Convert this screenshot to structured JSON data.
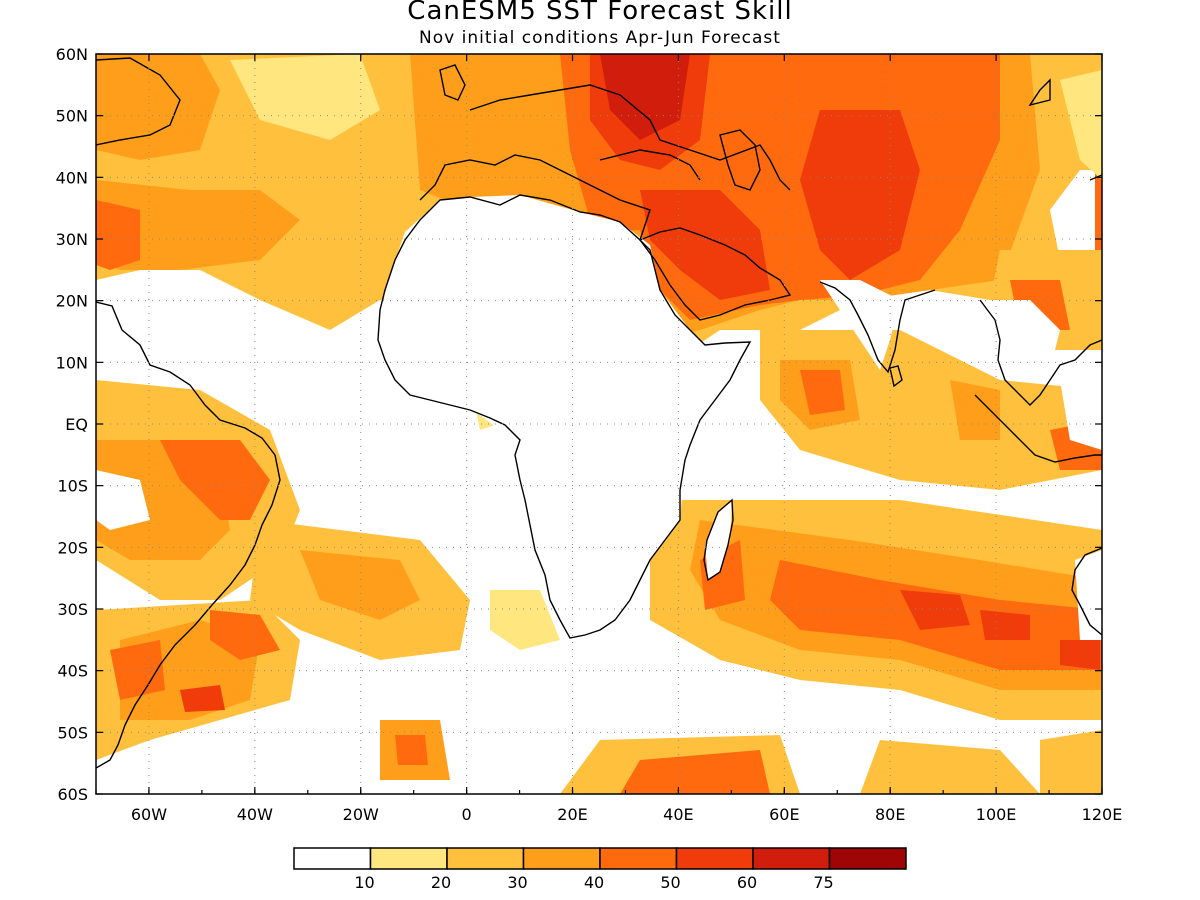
{
  "title": "CanESM5 SST Forecast Skill",
  "subtitle": "Nov initial conditions  Apr-Jun Forecast",
  "map": {
    "lon_range": [
      -70,
      120
    ],
    "lat_range": [
      -60,
      60
    ],
    "lat_labels": [
      "60N",
      "50N",
      "40N",
      "30N",
      "20N",
      "10N",
      "EQ",
      "10S",
      "20S",
      "30S",
      "40S",
      "50S",
      "60S"
    ],
    "lon_labels": [
      "60W",
      "40W",
      "20W",
      "0",
      "20E",
      "40E",
      "60E",
      "80E",
      "100E",
      "120E"
    ],
    "grid": "dotted"
  },
  "colorbar": {
    "colors": [
      "#ffffff",
      "#ffe67f",
      "#ffc13d",
      "#ff9e1a",
      "#ff6a0e",
      "#f03b0b",
      "#d11d0b",
      "#9e0606"
    ],
    "labels": [
      "10",
      "20",
      "30",
      "40",
      "50",
      "60",
      "75"
    ]
  }
}
